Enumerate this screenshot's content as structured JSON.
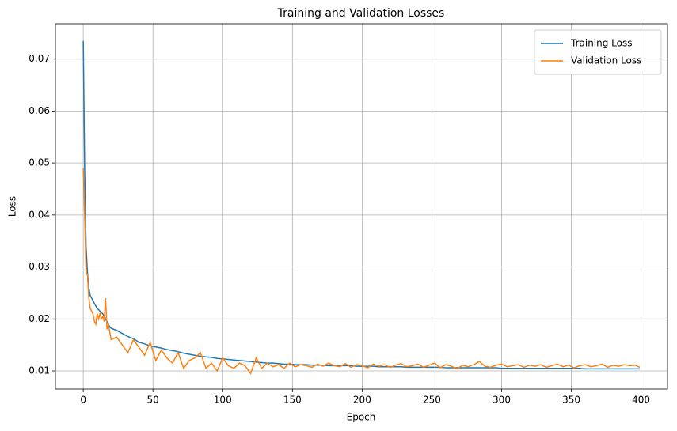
{
  "chart_data": {
    "type": "line",
    "title": "Training and Validation Losses",
    "x_label": "Epoch",
    "y_label": "Loss",
    "x": [
      0,
      1,
      2,
      3,
      4,
      5,
      6,
      7,
      8,
      9,
      10,
      11,
      12,
      13,
      14,
      15,
      16,
      17,
      18,
      19,
      20,
      24,
      28,
      32,
      36,
      40,
      44,
      48,
      52,
      56,
      60,
      64,
      68,
      72,
      76,
      80,
      84,
      88,
      92,
      96,
      100,
      104,
      108,
      112,
      116,
      120,
      124,
      128,
      132,
      136,
      140,
      144,
      148,
      152,
      156,
      160,
      164,
      168,
      172,
      176,
      180,
      184,
      188,
      192,
      196,
      200,
      204,
      208,
      212,
      216,
      220,
      224,
      228,
      232,
      236,
      240,
      244,
      248,
      252,
      256,
      260,
      264,
      268,
      272,
      276,
      280,
      284,
      288,
      292,
      296,
      300,
      304,
      308,
      312,
      316,
      320,
      324,
      328,
      332,
      336,
      340,
      344,
      348,
      352,
      356,
      360,
      364,
      368,
      372,
      376,
      380,
      384,
      388,
      392,
      396,
      399
    ],
    "series": [
      {
        "name": "Training Loss",
        "color": "#1f77b4",
        "values": [
          0.0735,
          0.049,
          0.034,
          0.029,
          0.026,
          0.0245,
          0.024,
          0.0235,
          0.023,
          0.0225,
          0.022,
          0.0218,
          0.0215,
          0.0212,
          0.021,
          0.0205,
          0.02,
          0.0195,
          0.019,
          0.0185,
          0.0182,
          0.0178,
          0.0172,
          0.0166,
          0.0162,
          0.0155,
          0.0152,
          0.0148,
          0.0146,
          0.0144,
          0.0141,
          0.0139,
          0.0137,
          0.0134,
          0.0132,
          0.013,
          0.0128,
          0.0127,
          0.0126,
          0.0124,
          0.0123,
          0.0122,
          0.0121,
          0.012,
          0.0119,
          0.0118,
          0.0117,
          0.0116,
          0.0115,
          0.0115,
          0.0114,
          0.0113,
          0.0113,
          0.0112,
          0.0112,
          0.0112,
          0.0111,
          0.0111,
          0.0111,
          0.011,
          0.011,
          0.011,
          0.011,
          0.011,
          0.0109,
          0.0109,
          0.0109,
          0.0109,
          0.0108,
          0.0108,
          0.0108,
          0.0108,
          0.0108,
          0.0107,
          0.0107,
          0.0107,
          0.0107,
          0.0107,
          0.0107,
          0.0107,
          0.0106,
          0.0106,
          0.0106,
          0.0106,
          0.0106,
          0.0106,
          0.0106,
          0.0106,
          0.0106,
          0.0106,
          0.0105,
          0.0105,
          0.0105,
          0.0105,
          0.0105,
          0.0105,
          0.0105,
          0.0105,
          0.0105,
          0.0105,
          0.0105,
          0.0105,
          0.0105,
          0.0105,
          0.0105,
          0.0104,
          0.0104,
          0.0104,
          0.0104,
          0.0104,
          0.0104,
          0.0104,
          0.0104,
          0.0104,
          0.0104,
          0.0104
        ]
      },
      {
        "name": "Validation Loss",
        "color": "#ff7f0e",
        "values": [
          0.049,
          0.04,
          0.029,
          0.0285,
          0.024,
          0.022,
          0.0215,
          0.021,
          0.0195,
          0.019,
          0.021,
          0.02,
          0.021,
          0.02,
          0.0205,
          0.0195,
          0.024,
          0.018,
          0.019,
          0.0175,
          0.016,
          0.0165,
          0.015,
          0.0135,
          0.016,
          0.0145,
          0.013,
          0.0155,
          0.012,
          0.014,
          0.0125,
          0.0115,
          0.0135,
          0.0105,
          0.012,
          0.0125,
          0.0135,
          0.0105,
          0.0115,
          0.01,
          0.0125,
          0.011,
          0.0105,
          0.0115,
          0.011,
          0.0095,
          0.0125,
          0.0105,
          0.0115,
          0.0108,
          0.0112,
          0.0105,
          0.0115,
          0.0108,
          0.0112,
          0.011,
          0.0107,
          0.0113,
          0.0109,
          0.0115,
          0.011,
          0.0108,
          0.0114,
          0.0107,
          0.0112,
          0.011,
          0.0106,
          0.0113,
          0.0109,
          0.0112,
          0.0107,
          0.0111,
          0.0114,
          0.0108,
          0.011,
          0.0113,
          0.0107,
          0.0111,
          0.0115,
          0.0106,
          0.0112,
          0.0109,
          0.0104,
          0.0111,
          0.0108,
          0.0112,
          0.0118,
          0.0109,
          0.0107,
          0.0111,
          0.0113,
          0.0108,
          0.011,
          0.0112,
          0.0107,
          0.0111,
          0.0109,
          0.0112,
          0.0107,
          0.011,
          0.0113,
          0.0108,
          0.0111,
          0.0106,
          0.011,
          0.0112,
          0.0108,
          0.011,
          0.0113,
          0.0107,
          0.0111,
          0.0109,
          0.0112,
          0.011,
          0.0111,
          0.0107
        ]
      }
    ],
    "xlim": [
      -19.95,
      418.95
    ],
    "xticks": [
      0,
      50,
      100,
      150,
      200,
      250,
      300,
      350,
      400
    ],
    "ylim": [
      0.0065,
      0.0768
    ],
    "yticks": [
      0.01,
      0.02,
      0.03,
      0.04,
      0.05,
      0.06,
      0.07
    ],
    "grid": true,
    "legend": "upper-right"
  }
}
